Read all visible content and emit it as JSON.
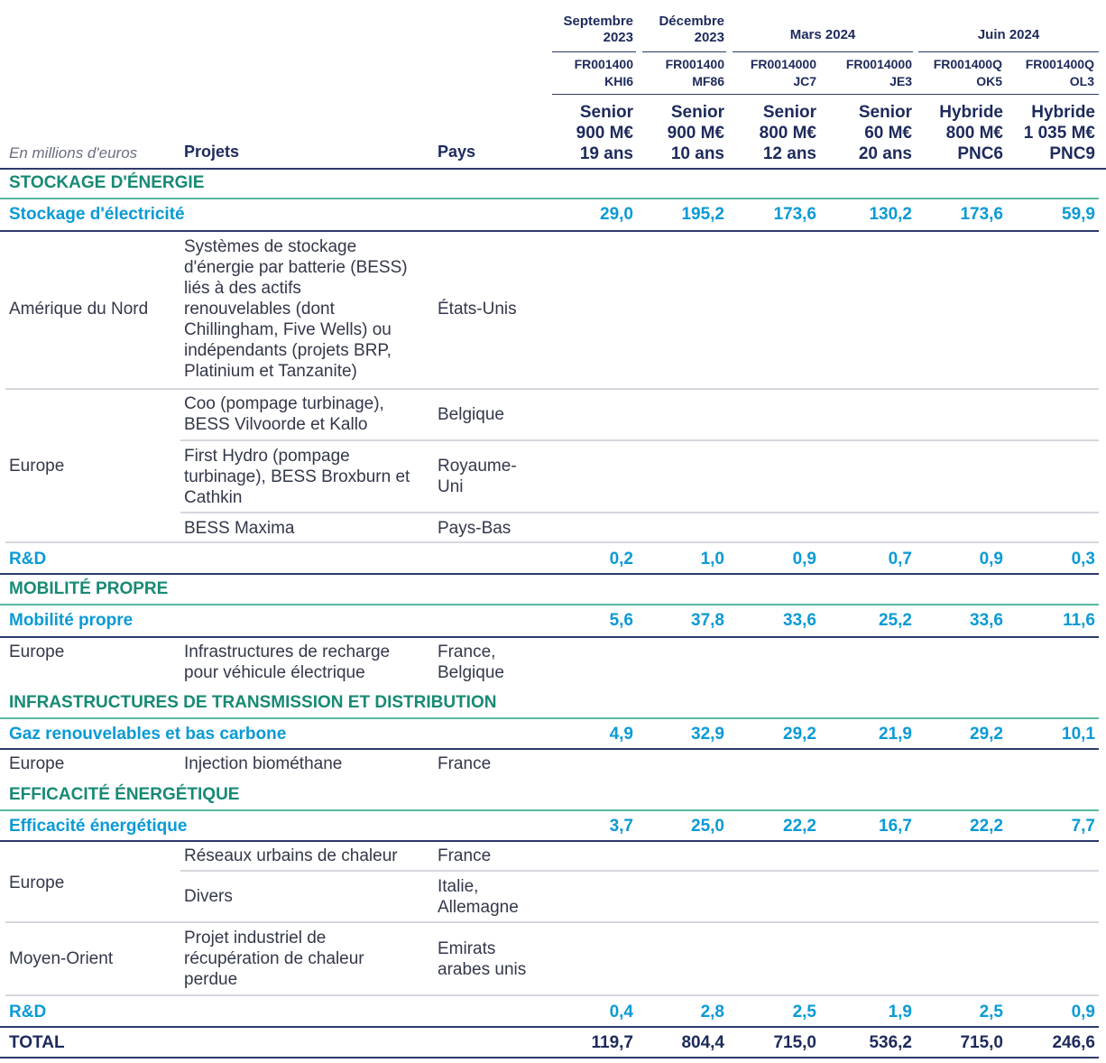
{
  "header": {
    "unit_label": "En millions d'euros",
    "col_projets": "Projets",
    "col_pays": "Pays",
    "periods": {
      "sept": [
        "Septembre",
        "2023"
      ],
      "dec": [
        "Décembre",
        "2023"
      ],
      "mars": "Mars 2024",
      "juin": "Juin 2024"
    },
    "bonds": [
      {
        "isin": [
          "FR001400",
          "KHI6"
        ],
        "desc": [
          "Senior",
          "900 M€",
          "19 ans"
        ]
      },
      {
        "isin": [
          "FR001400",
          "MF86"
        ],
        "desc": [
          "Senior",
          "900 M€",
          "10 ans"
        ]
      },
      {
        "isin": [
          "FR0014000",
          "JC7"
        ],
        "desc": [
          "Senior",
          "800 M€",
          "12 ans"
        ]
      },
      {
        "isin": [
          "FR0014000",
          "JE3"
        ],
        "desc": [
          "Senior",
          "60 M€",
          "20 ans"
        ]
      },
      {
        "isin": [
          "FR001400Q",
          "OK5"
        ],
        "desc": [
          "Hybride",
          "800 M€",
          "PNC6"
        ]
      },
      {
        "isin": [
          "FR001400Q",
          "OL3"
        ],
        "desc": [
          "Hybride",
          "1 035 M€",
          "PNC9"
        ]
      }
    ]
  },
  "sections": {
    "stockage": "STOCKAGE D'ÉNERGIE",
    "mobilite": "MOBILITÉ PROPRE",
    "infra": "INFRASTRUCTURES DE TRANSMISSION ET DISTRIBUTION",
    "efficacite": "EFFICACITÉ ÉNERGÉTIQUE"
  },
  "subtotals": {
    "stockage_elec": {
      "label": "Stockage d'électricité",
      "values": [
        "29,0",
        "195,2",
        "173,6",
        "130,2",
        "173,6",
        "59,9"
      ]
    },
    "rd1": {
      "label": "R&D",
      "values": [
        "0,2",
        "1,0",
        "0,9",
        "0,7",
        "0,9",
        "0,3"
      ]
    },
    "mobilite": {
      "label": "Mobilité propre",
      "values": [
        "5,6",
        "37,8",
        "33,6",
        "25,2",
        "33,6",
        "11,6"
      ]
    },
    "gaz": {
      "label": "Gaz renouvelables et bas carbone",
      "values": [
        "4,9",
        "32,9",
        "29,2",
        "21,9",
        "29,2",
        "10,1"
      ]
    },
    "efficacite": {
      "label": "Efficacité énergétique",
      "values": [
        "3,7",
        "25,0",
        "22,2",
        "16,7",
        "22,2",
        "7,7"
      ]
    },
    "rd2": {
      "label": "R&D",
      "values": [
        "0,4",
        "2,8",
        "2,5",
        "1,9",
        "2,5",
        "0,9"
      ]
    },
    "total": {
      "label": "TOTAL",
      "values": [
        "119,7",
        "804,4",
        "715,0",
        "536,2",
        "715,0",
        "246,6"
      ]
    }
  },
  "rows": {
    "amerique": {
      "region": "Amérique du Nord",
      "projet": [
        "Systèmes de stockage",
        "d'énergie par batterie (BESS)",
        "liés à des actifs",
        "renouvelables (dont",
        "Chillingham, Five Wells) ou",
        "indépendants (projets BRP,",
        "Platinium et Tanzanite)"
      ],
      "pays": "États-Unis"
    },
    "europe1": {
      "region": "Europe",
      "items": [
        {
          "projet": [
            "Coo (pompage turbinage),",
            "BESS Vilvoorde et Kallo"
          ],
          "pays": [
            "Belgique"
          ]
        },
        {
          "projet": [
            "First Hydro (pompage",
            "turbinage), BESS Broxburn et",
            "Cathkin"
          ],
          "pays": [
            "Royaume-",
            "Uni"
          ]
        },
        {
          "projet": [
            "BESS Maxima"
          ],
          "pays": [
            "Pays-Bas"
          ]
        }
      ]
    },
    "europe_mob": {
      "region": "Europe",
      "projet": [
        "Infrastructures de recharge",
        "pour véhicule électrique"
      ],
      "pays": [
        "France,",
        "Belgique"
      ]
    },
    "europe_gaz": {
      "region": "Europe",
      "projet": "Injection biométhane",
      "pays": "France"
    },
    "europe_eff": {
      "region": "Europe",
      "items": [
        {
          "projet": [
            "Réseaux urbains de chaleur"
          ],
          "pays": [
            "France"
          ]
        },
        {
          "projet": [
            "Divers"
          ],
          "pays": [
            "Italie,",
            "Allemagne"
          ]
        }
      ]
    },
    "moyen_orient": {
      "region": "Moyen-Orient",
      "projet": [
        "Projet industriel de",
        "récupération de chaleur",
        "perdue"
      ],
      "pays": [
        "Emirats",
        "arabes unis"
      ]
    }
  }
}
